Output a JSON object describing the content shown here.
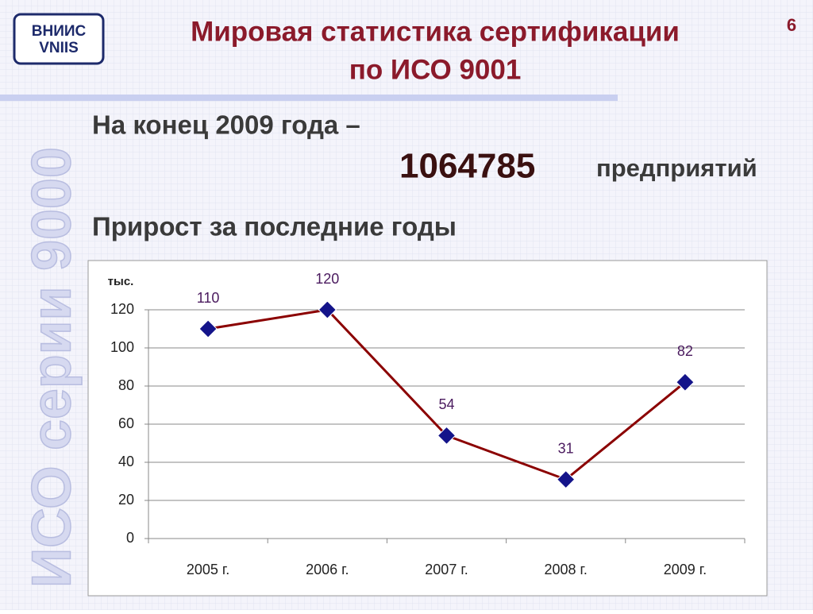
{
  "slide": {
    "logo": [
      "ВНИИС",
      "VNIIS"
    ],
    "title": [
      "Мировая статистика сертификации",
      "по ИСО 9001"
    ],
    "page_number": "6",
    "watermark": "ИСО серии 9000",
    "line1": "На конец 2009 года –",
    "big_number": "1064785",
    "big_number_unit": "предприятий",
    "subtitle": "Прирост за последние годы"
  },
  "chart_data": {
    "type": "line",
    "y_unit_label": "тыс.",
    "categories": [
      "2005 г.",
      "2006 г.",
      "2007 г.",
      "2008 г.",
      "2009 г."
    ],
    "values": [
      110,
      120,
      54,
      31,
      82
    ],
    "color": "#8b0000",
    "marker_color": "#14148a",
    "ylim": [
      0,
      120
    ],
    "yticks": [
      0,
      20,
      40,
      60,
      80,
      100,
      120
    ],
    "grid": true,
    "data_labels": true
  }
}
